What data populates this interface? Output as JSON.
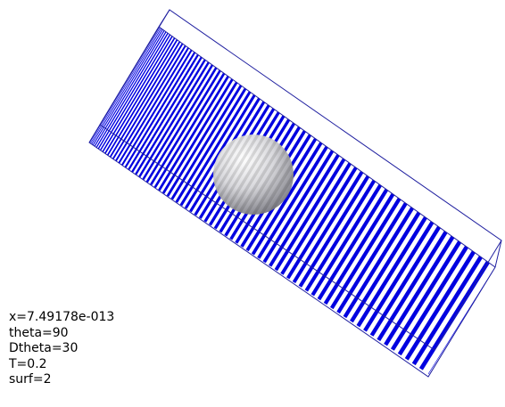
{
  "readout": {
    "lines": [
      "x=7.49178e-013",
      "theta=90",
      "Dtheta=30",
      "T=0.2",
      "surf=2"
    ]
  }
}
